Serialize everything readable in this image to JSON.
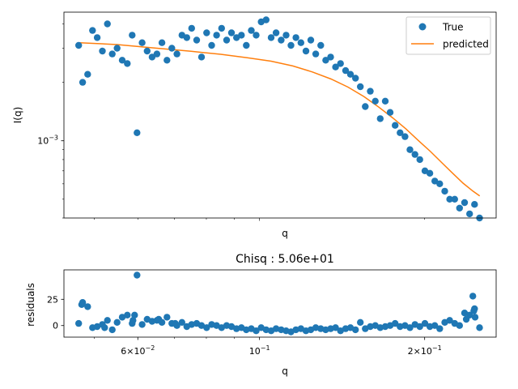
{
  "chart_data": [
    {
      "type": "scatter",
      "title": "",
      "xlabel": "q",
      "ylabel": "I(q)",
      "xscale": "log",
      "yscale": "log",
      "xlim": [
        0.044,
        0.27
      ],
      "ylim": [
        0.0004,
        0.0046
      ],
      "yticks": [
        {
          "value": 0.001,
          "base": "10",
          "exp": "−3"
        }
      ],
      "xtick_labels_shown": false,
      "legend": {
        "position": "top-right",
        "entries": [
          {
            "label": "True",
            "kind": "marker",
            "color": "#1f77b4"
          },
          {
            "label": "predicted",
            "kind": "line",
            "color": "#ff7f0e"
          }
        ]
      },
      "colors": {
        "true": "#1f77b4",
        "predicted": "#ff7f0e"
      },
      "predicted": {
        "x": [
          0.047,
          0.055,
          0.065,
          0.075,
          0.085,
          0.095,
          0.105,
          0.115,
          0.125,
          0.135,
          0.145,
          0.155,
          0.165,
          0.175,
          0.185,
          0.195,
          0.205,
          0.215,
          0.225,
          0.235,
          0.245,
          0.252
        ],
        "y": [
          0.0032,
          0.00313,
          0.003,
          0.00289,
          0.00279,
          0.00268,
          0.00257,
          0.00243,
          0.00226,
          0.00208,
          0.00189,
          0.00169,
          0.00149,
          0.00131,
          0.00115,
          0.001,
          0.00088,
          0.00077,
          0.00068,
          0.000605,
          0.00055,
          0.00052
        ]
      },
      "true_points": {
        "x": [
          0.0468,
          0.0476,
          0.0486,
          0.0496,
          0.0506,
          0.0517,
          0.0528,
          0.0539,
          0.055,
          0.0562,
          0.0574,
          0.0586,
          0.0598,
          0.0611,
          0.0624,
          0.0637,
          0.065,
          0.0664,
          0.0678,
          0.0692,
          0.0707,
          0.0722,
          0.0737,
          0.0752,
          0.0768,
          0.0784,
          0.0801,
          0.0818,
          0.0835,
          0.0853,
          0.0871,
          0.0889,
          0.0908,
          0.0927,
          0.0946,
          0.0966,
          0.0986,
          0.1007,
          0.1028,
          0.105,
          0.1072,
          0.1095,
          0.1118,
          0.1141,
          0.1165,
          0.119,
          0.1215,
          0.124,
          0.1266,
          0.1293,
          0.132,
          0.1348,
          0.1376,
          0.1405,
          0.1435,
          0.1465,
          0.1496,
          0.1527,
          0.1559,
          0.1592,
          0.1626,
          0.166,
          0.1695,
          0.173,
          0.1767,
          0.1804,
          0.1842,
          0.188,
          0.192,
          0.196,
          0.2002,
          0.2044,
          0.2087,
          0.2131,
          0.2176,
          0.2222,
          0.2269,
          0.2316,
          0.2365,
          0.2415,
          0.2466,
          0.2518
        ],
        "y": [
          0.0031,
          0.002,
          0.0022,
          0.0037,
          0.0034,
          0.0029,
          0.004,
          0.0028,
          0.003,
          0.0026,
          0.0025,
          0.0035,
          0.0011,
          0.0032,
          0.0029,
          0.0027,
          0.0028,
          0.0032,
          0.0026,
          0.003,
          0.0028,
          0.0035,
          0.0034,
          0.0038,
          0.0033,
          0.0027,
          0.0036,
          0.0031,
          0.0035,
          0.0038,
          0.0033,
          0.0036,
          0.0034,
          0.0035,
          0.0031,
          0.0037,
          0.0035,
          0.0041,
          0.0042,
          0.0034,
          0.0036,
          0.0033,
          0.0035,
          0.0031,
          0.0034,
          0.0032,
          0.0029,
          0.0033,
          0.0028,
          0.0031,
          0.0026,
          0.0027,
          0.0024,
          0.0025,
          0.0023,
          0.0022,
          0.0021,
          0.0019,
          0.0015,
          0.0018,
          0.0016,
          0.0013,
          0.0016,
          0.0014,
          0.0012,
          0.0011,
          0.00105,
          0.0009,
          0.00085,
          0.0008,
          0.0007,
          0.00068,
          0.00062,
          0.0006,
          0.00055,
          0.0005,
          0.0005,
          0.00045,
          0.00048,
          0.00042,
          0.00047,
          0.0004
        ]
      }
    },
    {
      "type": "scatter",
      "title": "Chisq : 5.06e+01",
      "xlabel": "q",
      "ylabel": "residuals",
      "xscale": "log",
      "yscale": "linear",
      "xlim": [
        0.044,
        0.27
      ],
      "ylim": [
        -11,
        53
      ],
      "yticks": [
        0,
        25
      ],
      "xticks": [
        {
          "value": 0.06,
          "mant": "6",
          "times": "×",
          "base": "10",
          "exp": "−2"
        },
        {
          "value": 0.1,
          "mant": "",
          "times": "",
          "base": "10",
          "exp": "−1"
        },
        {
          "value": 0.2,
          "mant": "2",
          "times": "×",
          "base": "10",
          "exp": "−1"
        }
      ],
      "color": "#1f77b4",
      "residuals": {
        "x": [
          0.0468,
          0.0476,
          0.0486,
          0.0496,
          0.0506,
          0.0517,
          0.0528,
          0.0539,
          0.055,
          0.0562,
          0.0574,
          0.0586,
          0.0598,
          0.0611,
          0.0624,
          0.0637,
          0.065,
          0.0664,
          0.0678,
          0.0692,
          0.0707,
          0.0722,
          0.0737,
          0.0752,
          0.0768,
          0.0784,
          0.0801,
          0.0818,
          0.0835,
          0.0853,
          0.0871,
          0.0889,
          0.0908,
          0.0927,
          0.0946,
          0.0966,
          0.0986,
          0.1007,
          0.1028,
          0.105,
          0.1072,
          0.1095,
          0.1118,
          0.1141,
          0.1165,
          0.119,
          0.1215,
          0.124,
          0.1266,
          0.1293,
          0.132,
          0.1348,
          0.1376,
          0.1405,
          0.1435,
          0.1465,
          0.1496,
          0.1527,
          0.1559,
          0.1592,
          0.1626,
          0.166,
          0.1695,
          0.173,
          0.1767,
          0.1804,
          0.1842,
          0.188,
          0.192,
          0.196,
          0.2002,
          0.2044,
          0.2087,
          0.2131,
          0.2176,
          0.2222,
          0.2269,
          0.2316,
          0.2365,
          0.2415,
          0.2466,
          0.2518,
          0.0474,
          0.0522,
          0.0588,
          0.0592,
          0.0655,
          0.0702,
          0.2448,
          0.2458,
          0.2472,
          0.2382
        ],
        "y": [
          2,
          22,
          18,
          -2,
          -1,
          1,
          5,
          -4,
          3,
          8,
          10,
          2,
          48,
          1,
          6,
          4,
          5,
          3,
          8,
          2,
          0,
          3,
          -1,
          1,
          2,
          0,
          -2,
          1,
          0,
          -2,
          0,
          -1,
          -3,
          -2,
          -4,
          -3,
          -5,
          -2,
          -4,
          -5,
          -3,
          -4,
          -5,
          -6,
          -4,
          -3,
          -5,
          -4,
          -2,
          -3,
          -4,
          -3,
          -2,
          -5,
          -3,
          -2,
          -4,
          3,
          -3,
          -1,
          0,
          -2,
          -1,
          0,
          2,
          -1,
          0,
          -2,
          1,
          -1,
          2,
          -1,
          0,
          -3,
          3,
          5,
          2,
          0,
          12,
          10,
          16,
          -2,
          20,
          -2,
          5,
          10,
          6,
          2,
          28,
          14,
          8,
          6
        ]
      }
    }
  ]
}
